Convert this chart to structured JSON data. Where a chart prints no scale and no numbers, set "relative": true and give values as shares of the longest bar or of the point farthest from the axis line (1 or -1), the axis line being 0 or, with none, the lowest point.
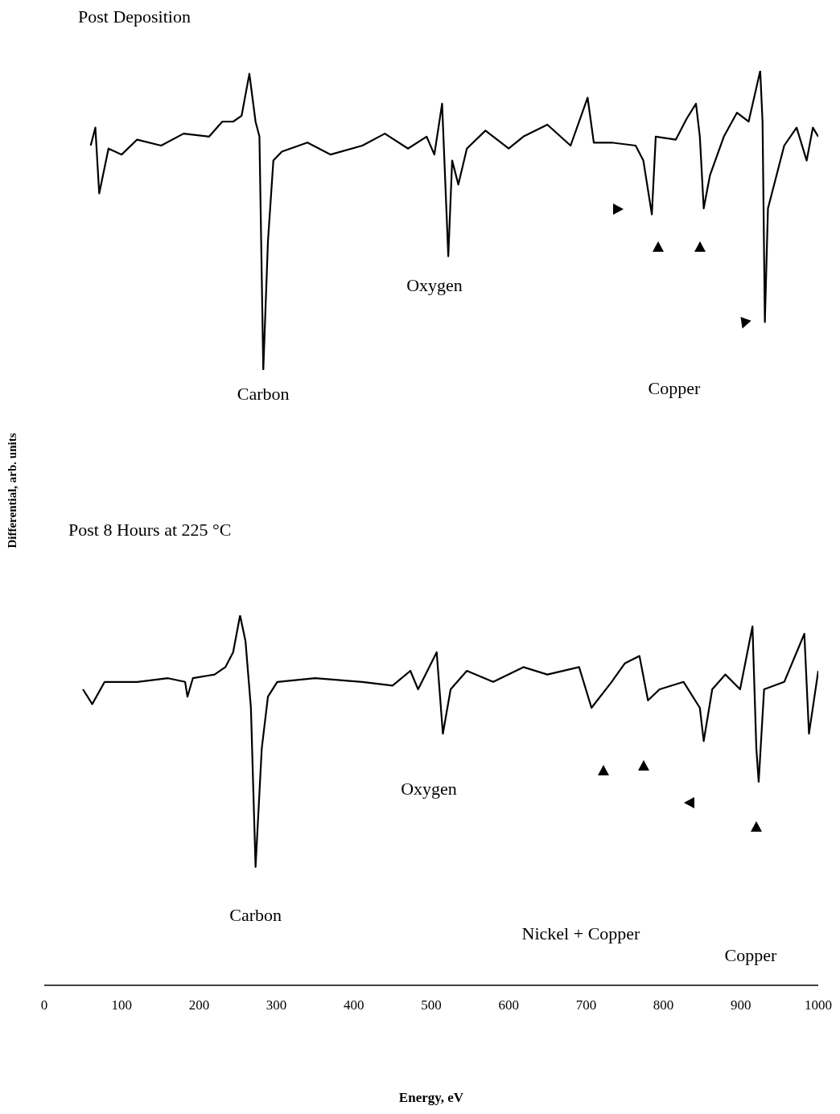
{
  "chart_data": [
    {
      "type": "line",
      "title": "Post Deposition",
      "ylabel": "Differential, arb. units",
      "relative": true,
      "xlim": [
        0,
        1000
      ],
      "tick_labels": false,
      "color": "#000000",
      "x": [
        60,
        66,
        71,
        83,
        100,
        120,
        151,
        180,
        213,
        230,
        244,
        255,
        265,
        273,
        278,
        283,
        289,
        296,
        307,
        340,
        370,
        411,
        440,
        470,
        494,
        504,
        514,
        522,
        527,
        535,
        546,
        570,
        600,
        619,
        650,
        680,
        702,
        710,
        733,
        764,
        774,
        785,
        790,
        816,
        830,
        842,
        847,
        852,
        860,
        878,
        895,
        910,
        925,
        928,
        931,
        935,
        946,
        956,
        972,
        985,
        993,
        1000
      ],
      "values": [
        0.75,
        0.81,
        0.59,
        0.74,
        0.72,
        0.77,
        0.75,
        0.79,
        0.78,
        0.83,
        0.83,
        0.85,
        0.99,
        0.83,
        0.78,
        0,
        0.43,
        0.7,
        0.73,
        0.76,
        0.72,
        0.75,
        0.79,
        0.74,
        0.78,
        0.72,
        0.89,
        0.38,
        0.7,
        0.62,
        0.74,
        0.8,
        0.74,
        0.78,
        0.82,
        0.75,
        0.91,
        0.76,
        0.76,
        0.75,
        0.7,
        0.52,
        0.78,
        0.77,
        0.84,
        0.89,
        0.78,
        0.54,
        0.65,
        0.78,
        0.86,
        0.83,
        1.0,
        0.83,
        0.16,
        0.54,
        0.65,
        0.75,
        0.81,
        0.7,
        0.81,
        0.78
      ],
      "annotations": [
        {
          "text": "Carbon",
          "x": 283,
          "y": 0
        },
        "Oxygen",
        "Copper"
      ]
    },
    {
      "type": "line",
      "title": "Post 8 Hours at 225 °C",
      "xlabel": "Energy, eV",
      "relative": true,
      "xlim": [
        0,
        1000
      ],
      "xticks": [
        0,
        100,
        200,
        300,
        400,
        500,
        600,
        700,
        800,
        900,
        1000
      ],
      "color": "#000000",
      "x": [
        50,
        62,
        78,
        120,
        160,
        182,
        185,
        192,
        220,
        234,
        244,
        253,
        260,
        267,
        273,
        281,
        289,
        301,
        350,
        411,
        450,
        473,
        483,
        507,
        515,
        525,
        546,
        580,
        619,
        650,
        691,
        707,
        733,
        750,
        769,
        780,
        795,
        826,
        847,
        852,
        863,
        880,
        899,
        915,
        920,
        923,
        930,
        956,
        982,
        988,
        1000
      ],
      "values": [
        0.8,
        0.76,
        0.82,
        0.82,
        0.83,
        0.82,
        0.78,
        0.83,
        0.84,
        0.86,
        0.9,
        1.0,
        0.93,
        0.75,
        0.32,
        0.64,
        0.78,
        0.82,
        0.83,
        0.82,
        0.81,
        0.85,
        0.8,
        0.9,
        0.68,
        0.8,
        0.85,
        0.82,
        0.86,
        0.84,
        0.86,
        0.75,
        0.82,
        0.87,
        0.89,
        0.77,
        0.8,
        0.82,
        0.75,
        0.66,
        0.8,
        0.84,
        0.8,
        0.97,
        0.64,
        0.55,
        0.8,
        0.82,
        0.95,
        0.68,
        0.85
      ],
      "annotations": [
        {
          "text": "Carbon",
          "x": 273,
          "y": 0.32
        },
        "Oxygen",
        "Nickel + Copper",
        "Copper"
      ]
    }
  ]
}
